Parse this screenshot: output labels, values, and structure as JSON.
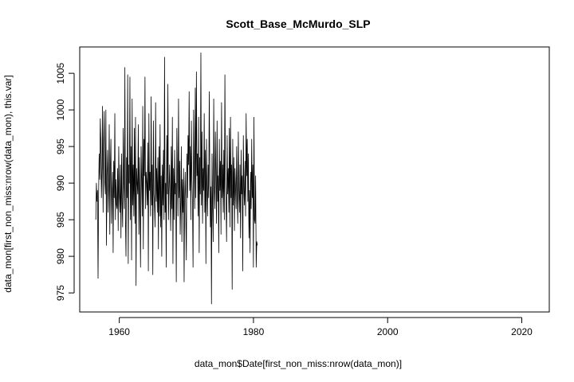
{
  "chart_data": {
    "type": "line",
    "title": "Scott_Base_McMurdo_SLP",
    "xlabel": "data_mon$Date[first_non_miss:nrow(data_mon)]",
    "ylabel": "data_mon[first_non_miss:nrow(data_mon), this.var]",
    "xlim": [
      1954.1,
      2024.1
    ],
    "ylim": [
      972.4,
      1008.6
    ],
    "x_ticks": [
      1960,
      1980,
      2000,
      2020
    ],
    "x_tick_labels": [
      "1960",
      "1980",
      "2000",
      "2020"
    ],
    "y_ticks": [
      975,
      980,
      985,
      990,
      995,
      1000,
      1005
    ],
    "y_tick_labels": [
      "975",
      "980",
      "985",
      "990",
      "995",
      "1000",
      "1005"
    ],
    "grid": false,
    "series": [
      {
        "x_start": 1956.5,
        "x_step": 0.0833,
        "values": [
          985.0,
          990.0,
          987.5,
          989.0,
          977.0,
          988.5,
          994.0,
          990.5,
          998.8,
          995.5,
          988.0,
          992.0,
          1000.5,
          986.0,
          995.0,
          999.8,
          990.0,
          988.5,
          1000.0,
          981.5,
          991.0,
          994.5,
          986.0,
          990.0,
          998.0,
          983.0,
          992.0,
          996.0,
          984.5,
          989.0,
          991.5,
          980.5,
          993.0,
          988.0,
          999.5,
          985.0,
          990.5,
          987.0,
          986.5,
          992.0,
          983.5,
          995.0,
          988.5,
          986.0,
          992.5,
          982.5,
          994.0,
          987.5,
          984.0,
          997.5,
          990.0,
          986.5,
          1005.8,
          985.0,
          980.0,
          993.5,
          988.0,
          1004.8,
          979.0,
          992.5,
          990.0,
          1004.5,
          985.0,
          995.0,
          979.5,
          1001.5,
          987.0,
          992.5,
          985.5,
          997.5,
          984.5,
          999.0,
          976.0,
          992.0,
          990.0,
          988.5,
          998.0,
          983.0,
          993.5,
          987.0,
          978.5,
          995.0,
          990.5,
          985.5,
          1000.5,
          981.0,
          996.0,
          991.0,
          1004.5,
          986.5,
          991.5,
          990.0,
          987.0,
          995.5,
          978.0,
          999.5,
          989.0,
          991.5,
          985.5,
          1001.8,
          987.0,
          992.5,
          977.5,
          998.5,
          988.5,
          987.0,
          984.0,
          1001.0,
          987.5,
          992.0,
          986.0,
          993.5,
          981.0,
          995.0,
          985.5,
          998.0,
          984.0,
          991.0,
          980.0,
          992.5,
          987.0,
          994.5,
          985.0,
          1007.2,
          986.0,
          990.0,
          978.5,
          996.5,
          988.5,
          1003.5,
          985.0,
          989.0,
          992.5,
          988.0,
          983.5,
          995.0,
          986.5,
          999.0,
          979.0,
          992.0,
          985.0,
          994.5,
          988.5,
          990.0,
          976.5,
          997.5,
          991.0,
          985.5,
          1001.5,
          988.0,
          993.0,
          983.0,
          987.5,
          995.0,
          982.0,
          990.5,
          986.0,
          992.0,
          976.5,
          988.0,
          991.5,
          985.5,
          979.5,
          994.0,
          988.0,
          996.5,
          992.5,
          1002.5,
          989.0,
          995.0,
          985.0,
          998.5,
          990.5,
          987.5,
          978.5,
          1000.0,
          991.5,
          986.5,
          1003.0,
          988.0,
          1005.2,
          991.0,
          994.0,
          985.5,
          999.0,
          980.5,
          993.5,
          988.5,
          1007.8,
          987.0,
          997.0,
          984.5,
          992.0,
          989.0,
          999.5,
          986.0,
          994.5,
          979.0,
          996.0,
          989.5,
          985.5,
          992.5,
          988.0,
          1002.5,
          991.0,
          984.0,
          989.5,
          973.5,
          994.0,
          987.0,
          982.0,
          1001.5,
          989.0,
          986.5,
          997.0,
          990.5,
          984.5,
          998.5,
          987.5,
          991.0,
          980.5,
          996.0,
          989.0,
          993.0,
          983.0,
          1001.0,
          988.0,
          992.5,
          986.0,
          994.5,
          985.0,
          1004.8,
          990.0,
          987.5,
          982.0,
          996.5,
          988.5,
          992.0,
          986.0,
          997.5,
          984.0,
          999.0,
          988.0,
          992.5,
          975.5,
          996.0,
          987.0,
          993.5,
          983.5,
          992.0,
          989.5,
          986.5,
          995.0,
          988.0,
          984.5,
          997.0,
          989.0,
          986.0,
          992.5,
          982.5,
          994.5,
          988.5,
          991.0,
          978.0,
          996.5,
          989.0,
          987.0,
          993.0,
          985.5,
          999.5,
          991.0,
          996.0,
          987.5,
          994.0,
          982.5,
          989.0,
          980.5,
          991.5,
          986.5,
          996.0,
          988.0,
          992.5,
          978.5,
          999.0,
          985.0,
          984.5,
          991.0,
          978.5,
          982.0,
          981.5
        ]
      }
    ]
  }
}
